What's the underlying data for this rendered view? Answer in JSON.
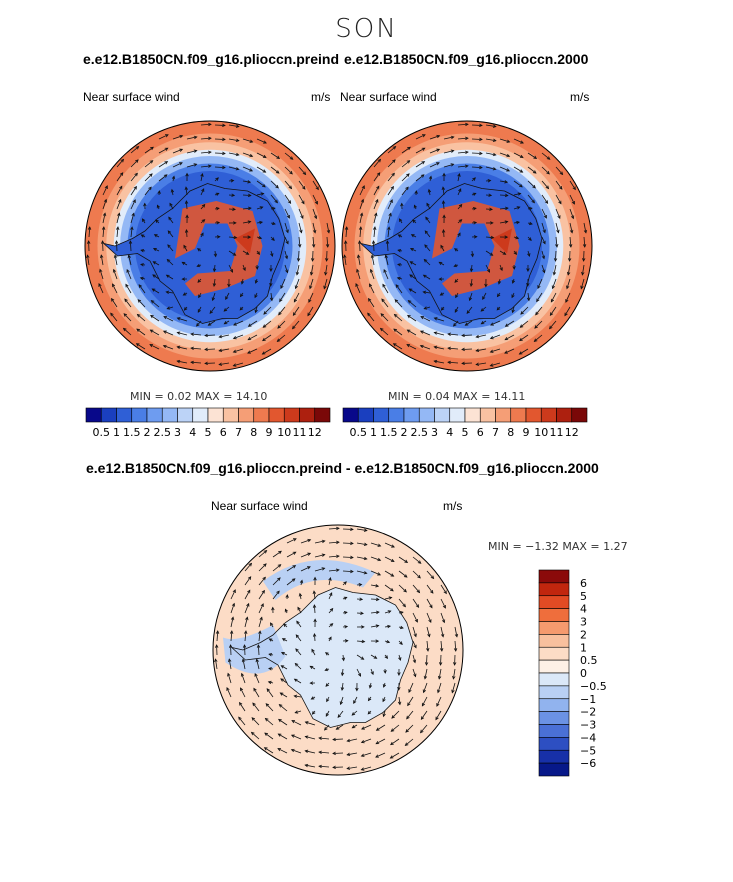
{
  "season": "SON",
  "top_titles": {
    "left": "e.e12.B1850CN.f09_g16.plioccn.preind",
    "right": "e.e12.B1850CN.f09_g16.plioccn.2000"
  },
  "diff_title": "e.e12.B1850CN.f09_g16.plioccn.preind - e.e12.B1850CN.f09_g16.plioccn.2000",
  "chart_data": [
    {
      "type": "heatmap",
      "subtitle_left": "Near surface wind",
      "subtitle_right": "m/s",
      "stats_text": "MIN =    0.02  MAX =    14.10",
      "min": 0.02,
      "max": 14.1,
      "colorbar": {
        "levels": [
          "0.5",
          "1",
          "1.5",
          "2",
          "2.5",
          "3",
          "4",
          "5",
          "6",
          "7",
          "8",
          "9",
          "10",
          "11",
          "12"
        ],
        "colors": [
          "#08088a",
          "#1a3fbf",
          "#2f5fd6",
          "#4a7ee6",
          "#6e9cf0",
          "#94b8f5",
          "#bcd3f7",
          "#e1ecfa",
          "#fce3d4",
          "#f9c2a2",
          "#f59e76",
          "#ee7a4f",
          "#e2572f",
          "#cd3a1c",
          "#ad200f",
          "#7a0808"
        ]
      }
    },
    {
      "type": "heatmap",
      "subtitle_left": "Near surface wind",
      "subtitle_right": "m/s",
      "stats_text": "MIN =    0.04  MAX =    14.11",
      "min": 0.04,
      "max": 14.11,
      "colorbar": {
        "levels": [
          "0.5",
          "1",
          "1.5",
          "2",
          "2.5",
          "3",
          "4",
          "5",
          "6",
          "7",
          "8",
          "9",
          "10",
          "11",
          "12"
        ],
        "colors": [
          "#08088a",
          "#1a3fbf",
          "#2f5fd6",
          "#4a7ee6",
          "#6e9cf0",
          "#94b8f5",
          "#bcd3f7",
          "#e1ecfa",
          "#fce3d4",
          "#f9c2a2",
          "#f59e76",
          "#ee7a4f",
          "#e2572f",
          "#cd3a1c",
          "#ad200f",
          "#7a0808"
        ]
      }
    },
    {
      "type": "heatmap",
      "subtitle_left": "Near surface wind",
      "subtitle_right": "m/s",
      "stats_text": "MIN =   −1.32  MAX =    1.27",
      "min": -1.32,
      "max": 1.27,
      "colorbar": {
        "levels": [
          "6",
          "5",
          "4",
          "3",
          "2",
          "1",
          "0.5",
          "0",
          "−0.5",
          "−1",
          "−2",
          "−3",
          "−4",
          "−5",
          "−6"
        ],
        "colors": [
          "#8b0a0a",
          "#c1260e",
          "#e24b24",
          "#ef6e3c",
          "#f59a6e",
          "#f8c09e",
          "#fcdcc6",
          "#fdf0e6",
          "#dbe8f8",
          "#b9d0f4",
          "#91b3ee",
          "#6b92e4",
          "#4a70d6",
          "#2d4fc2",
          "#1730a8",
          "#071889"
        ]
      }
    }
  ]
}
